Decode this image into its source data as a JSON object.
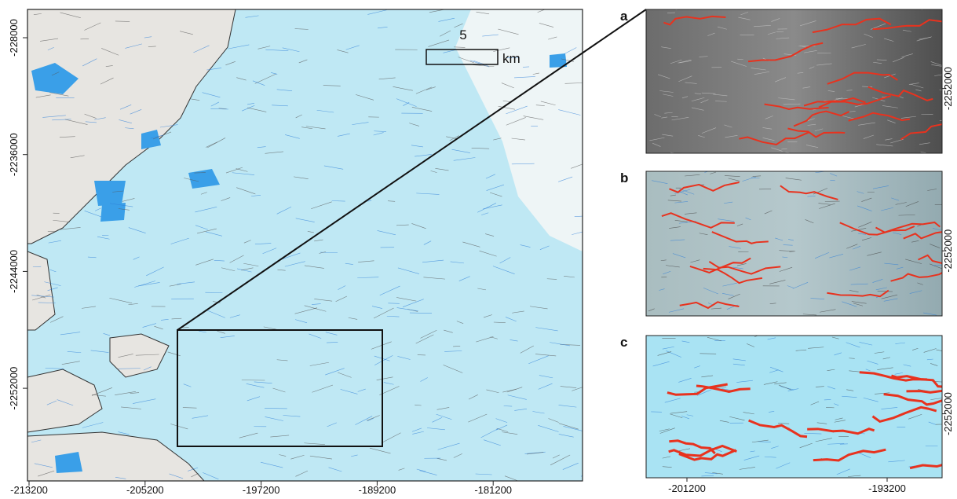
{
  "main_map": {
    "x_tick_labels": [
      "-213200",
      "-205200",
      "-197200",
      "-189200",
      "-181200"
    ],
    "y_tick_labels": [
      "-228000",
      "-2236000",
      "-2244000",
      "-2252000"
    ],
    "scale_bar": {
      "value": "5",
      "unit": "km"
    }
  },
  "panels": [
    {
      "label": "a",
      "y_tick_label": "-2252000"
    },
    {
      "label": "b",
      "y_tick_label": "-2252000"
    },
    {
      "label": "c",
      "y_tick_label": "-2252000"
    }
  ],
  "panel_x_tick_labels": [
    "-201200",
    "-193200"
  ]
}
